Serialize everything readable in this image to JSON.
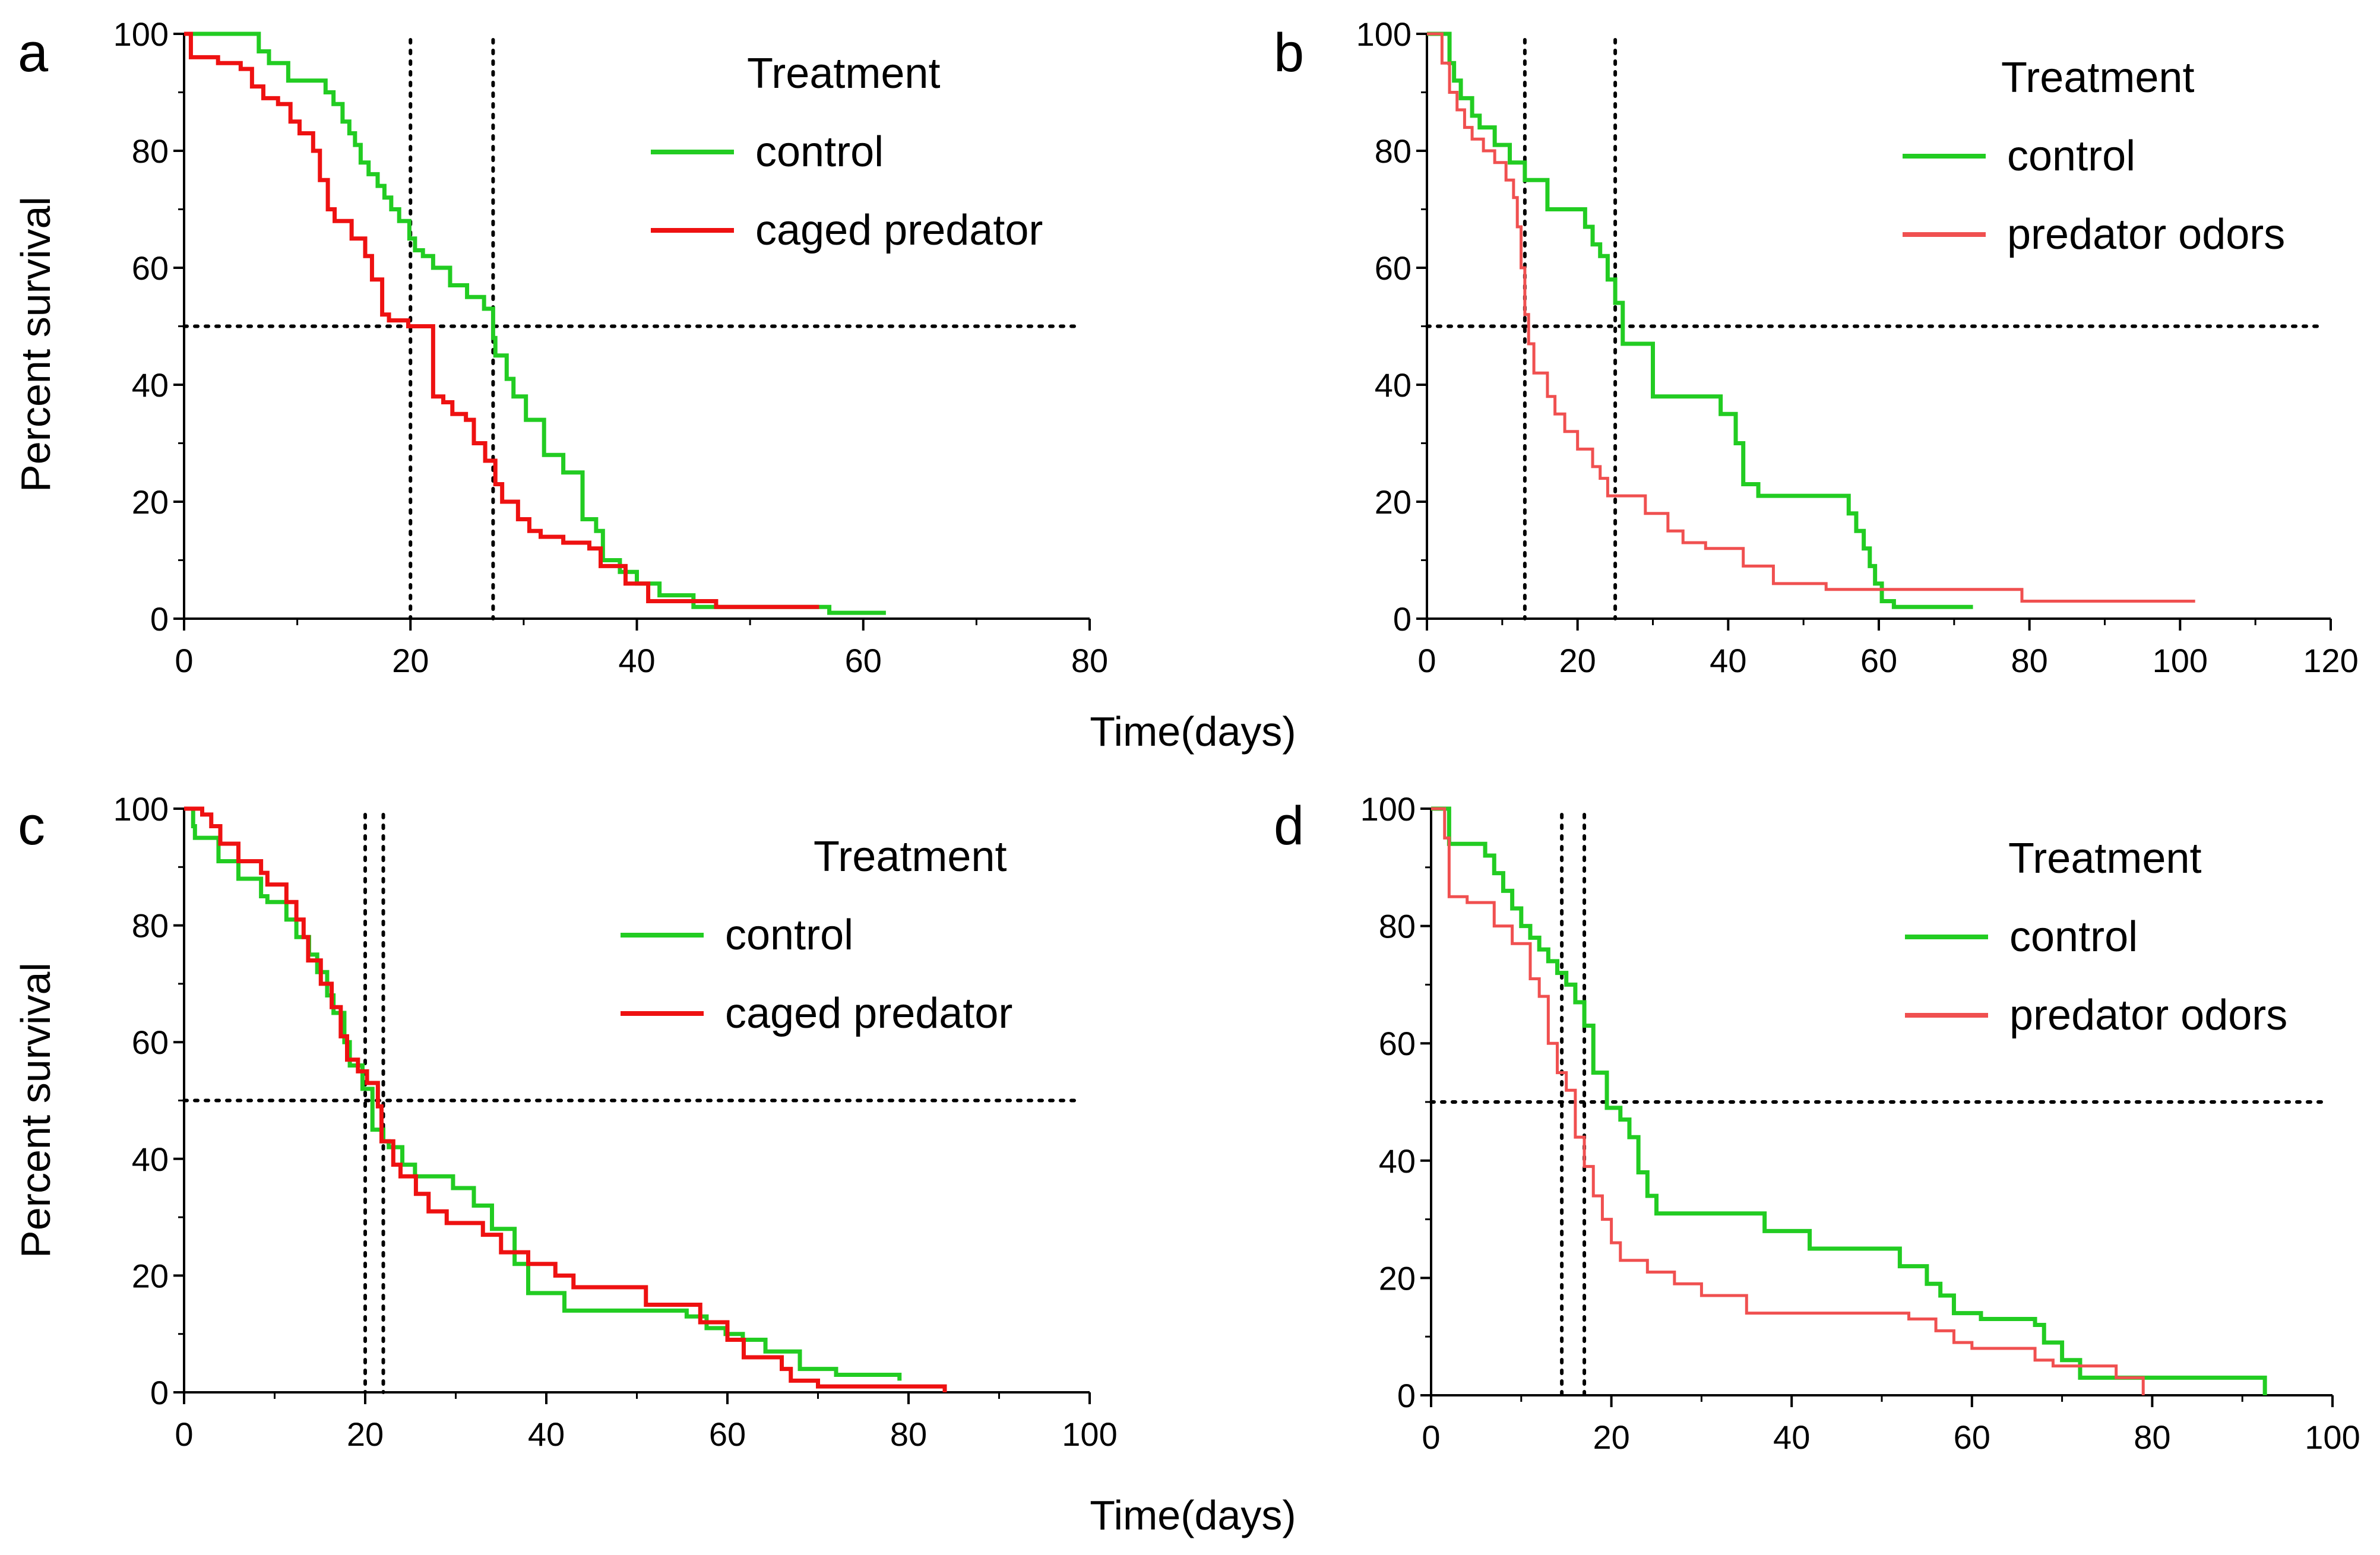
{
  "figure": {
    "xlabel_top": "Time(days)",
    "xlabel_bottom": "Time(days)",
    "ylabel_top": "Percent survival",
    "ylabel_bottom": "Percent survival"
  },
  "colors": {
    "control": "#22cc22",
    "caged_predator": "#ee1111",
    "predator_odors": "#f05050"
  },
  "chart_data": [
    {
      "panel": "a",
      "type": "line",
      "xlim": [
        0,
        80
      ],
      "ylim": [
        0,
        100
      ],
      "xticks": [
        "0",
        "20",
        "40",
        "60",
        "80"
      ],
      "yticks": [
        "0",
        "20",
        "40",
        "60",
        "80",
        "100"
      ],
      "legend_title": "Treatment",
      "reference_lines": {
        "y": 50,
        "x": [
          20,
          27.3
        ]
      },
      "series": [
        {
          "name": "control",
          "x": [
            0,
            6,
            6.6,
            7.5,
            9.2,
            12.5,
            13.2,
            14,
            14.6,
            15.1,
            15.6,
            16.3,
            17.1,
            17.7,
            18.3,
            19,
            19.9,
            20.4,
            21.1,
            22,
            23.5,
            25,
            26.5,
            27.3,
            27.5,
            28.5,
            29.1,
            30.2,
            31.8,
            33.5,
            35.2,
            36.4,
            37,
            38.5,
            40,
            42,
            45,
            48,
            50,
            54,
            57,
            62
          ],
          "y": [
            100,
            100,
            97,
            95,
            92,
            90,
            88,
            85,
            83,
            81,
            78,
            76,
            74,
            72,
            70,
            68,
            65,
            63,
            62,
            60,
            57,
            55,
            53,
            48,
            45,
            41,
            38,
            34,
            28,
            25,
            17,
            15,
            10,
            8,
            6,
            4,
            2,
            2,
            2,
            2,
            1,
            1
          ]
        },
        {
          "name": "caged predator",
          "x": [
            0,
            0.6,
            1,
            3,
            5,
            6,
            7,
            8.3,
            9.4,
            10.2,
            11.4,
            12,
            12.7,
            13.3,
            14.8,
            16,
            16.6,
            17.5,
            18.1,
            19.8,
            21,
            22,
            22.9,
            23.7,
            24.9,
            25.6,
            26.6,
            27.5,
            28.1,
            29.5,
            30.5,
            31.5,
            33.5,
            35.8,
            36.8,
            39,
            41,
            43,
            47,
            50,
            55,
            56.1
          ],
          "y": [
            100,
            96,
            96,
            95,
            94,
            91,
            89,
            88,
            85,
            83,
            80,
            75,
            70,
            68,
            65,
            62,
            58,
            52,
            51,
            50,
            50,
            38,
            37,
            35,
            34,
            30,
            27,
            23,
            20,
            17,
            15,
            14,
            13,
            12,
            9,
            6,
            3,
            3,
            2,
            2,
            2,
            2
          ]
        }
      ]
    },
    {
      "panel": "b",
      "type": "line",
      "xlim": [
        0,
        120
      ],
      "ylim": [
        0,
        100
      ],
      "xticks": [
        "0",
        "20",
        "40",
        "60",
        "80",
        "100",
        "120"
      ],
      "yticks": [
        "0",
        "20",
        "40",
        "60",
        "80",
        "100"
      ],
      "legend_title": "Treatment",
      "reference_lines": {
        "y": 50,
        "x": [
          13,
          25
        ]
      },
      "series": [
        {
          "name": "control",
          "x": [
            0,
            3,
            3.6,
            4.5,
            6,
            7,
            9,
            11,
            13,
            15,
            16,
            17,
            21,
            22,
            23,
            24,
            25,
            26,
            30,
            37,
            39,
            41,
            42,
            44,
            55,
            56,
            57,
            58,
            58.8,
            59.5,
            60.4,
            62,
            72.5
          ],
          "y": [
            100,
            95,
            92,
            89,
            86,
            84,
            81,
            78,
            75,
            75,
            70,
            70,
            67,
            64,
            62,
            58,
            54,
            47,
            38,
            38,
            35,
            30,
            23,
            21,
            21,
            18,
            15,
            12,
            9,
            6,
            3,
            2,
            2
          ]
        },
        {
          "name": "predator odors",
          "x": [
            0,
            2,
            3,
            4,
            5,
            6,
            7.5,
            9,
            10.5,
            11.5,
            12,
            12.5,
            13,
            13.5,
            14.2,
            16,
            17,
            18.3,
            20,
            22,
            23,
            24,
            29,
            32,
            34,
            37,
            42,
            43.5,
            46,
            53,
            57,
            68,
            79,
            88,
            95,
            102
          ],
          "y": [
            100,
            95,
            90,
            87,
            84,
            82,
            80,
            78,
            75,
            72,
            67,
            60,
            52,
            47,
            42,
            38,
            35,
            32,
            29,
            26,
            24,
            21,
            18,
            15,
            13,
            12,
            9,
            9,
            6,
            5,
            5,
            5,
            3,
            3,
            3,
            3
          ]
        }
      ]
    },
    {
      "panel": "c",
      "type": "line",
      "xlim": [
        0,
        100
      ],
      "ylim": [
        0,
        100
      ],
      "xticks": [
        "0",
        "20",
        "40",
        "60",
        "80",
        "100"
      ],
      "yticks": [
        "0",
        "20",
        "40",
        "60",
        "80",
        "100"
      ],
      "legend_title": "Treatment",
      "reference_lines": {
        "y": 50,
        "x": [
          20,
          22
        ]
      },
      "series": [
        {
          "name": "control",
          "x": [
            0,
            1,
            1.2,
            3.8,
            6,
            8.5,
            9.2,
            11.3,
            12.4,
            13.8,
            14.7,
            15.8,
            16.5,
            17.7,
            18.3,
            19.7,
            20.8,
            22,
            22.6,
            24.1,
            25.5,
            29.7,
            32,
            34,
            36.5,
            38,
            42,
            51,
            55.5,
            57.7,
            59.8,
            61.7,
            64.2,
            68,
            72,
            79
          ],
          "y": [
            100,
            97,
            95,
            91,
            88,
            85,
            84,
            81,
            78,
            75,
            72,
            68,
            65,
            60,
            56,
            52,
            45,
            43,
            42,
            39,
            37,
            35,
            32,
            28,
            22,
            17,
            14,
            14,
            13,
            11,
            10,
            9,
            7,
            4,
            3,
            2
          ]
        },
        {
          "name": "caged predator",
          "x": [
            0,
            2,
            3,
            4,
            6,
            8.5,
            9.2,
            11.3,
            12.4,
            13.2,
            13.7,
            15.1,
            16.3,
            17.3,
            18,
            19.2,
            20.2,
            21.4,
            21.8,
            23.1,
            23.9,
            25.6,
            27,
            29,
            33,
            35,
            38,
            41,
            43,
            51,
            57,
            60,
            61.8,
            66,
            67,
            70,
            76,
            79,
            84
          ],
          "y": [
            100,
            99,
            97,
            94,
            91,
            89,
            87,
            84,
            81,
            78,
            74,
            70,
            66,
            61,
            57,
            55,
            53,
            49,
            43,
            39,
            37,
            34,
            31,
            29,
            27,
            24,
            22,
            20,
            18,
            15,
            12,
            9,
            6,
            4,
            2,
            1,
            1,
            1,
            0
          ]
        }
      ]
    },
    {
      "panel": "d",
      "type": "line",
      "xlim": [
        0,
        100
      ],
      "ylim": [
        0,
        100
      ],
      "xticks": [
        "0",
        "20",
        "40",
        "60",
        "80",
        "100"
      ],
      "yticks": [
        "0",
        "20",
        "40",
        "60",
        "80",
        "100"
      ],
      "legend_title": "Treatment",
      "reference_lines": {
        "y": 50,
        "x": [
          14.5,
          17
        ]
      },
      "series": [
        {
          "name": "control",
          "x": [
            0,
            2,
            5,
            6,
            7,
            8,
            9,
            10,
            11,
            12,
            13,
            14,
            15,
            16,
            17,
            18,
            19.5,
            21,
            22,
            23,
            24,
            25,
            34,
            37,
            42,
            50,
            52,
            55,
            56.5,
            58,
            61,
            64,
            67,
            68,
            70,
            71,
            72,
            73,
            78,
            92.5
          ],
          "y": [
            100,
            94,
            94,
            92,
            89,
            86,
            83,
            80,
            78,
            76,
            74,
            72,
            70,
            67,
            63,
            55,
            49,
            47,
            44,
            38,
            34,
            31,
            31,
            28,
            25,
            25,
            22,
            19,
            17,
            14,
            13,
            13,
            12,
            9,
            6,
            6,
            3,
            3,
            3,
            0
          ]
        },
        {
          "name": "predator odors",
          "x": [
            0,
            1.5,
            2,
            4,
            7,
            9,
            11,
            12,
            13,
            14,
            15,
            16,
            17,
            18,
            19,
            20,
            21,
            24,
            27,
            30,
            35,
            40,
            49.5,
            53,
            56,
            58,
            60,
            65,
            67,
            69,
            70,
            72,
            76,
            78,
            79
          ],
          "y": [
            100,
            95,
            85,
            84,
            80,
            77,
            71,
            68,
            60,
            55,
            52,
            44,
            39,
            34,
            30,
            26,
            23,
            21,
            19,
            17,
            14,
            14,
            14,
            13,
            11,
            9,
            8,
            8,
            6,
            5,
            5,
            5,
            3,
            3,
            0
          ]
        }
      ]
    }
  ]
}
